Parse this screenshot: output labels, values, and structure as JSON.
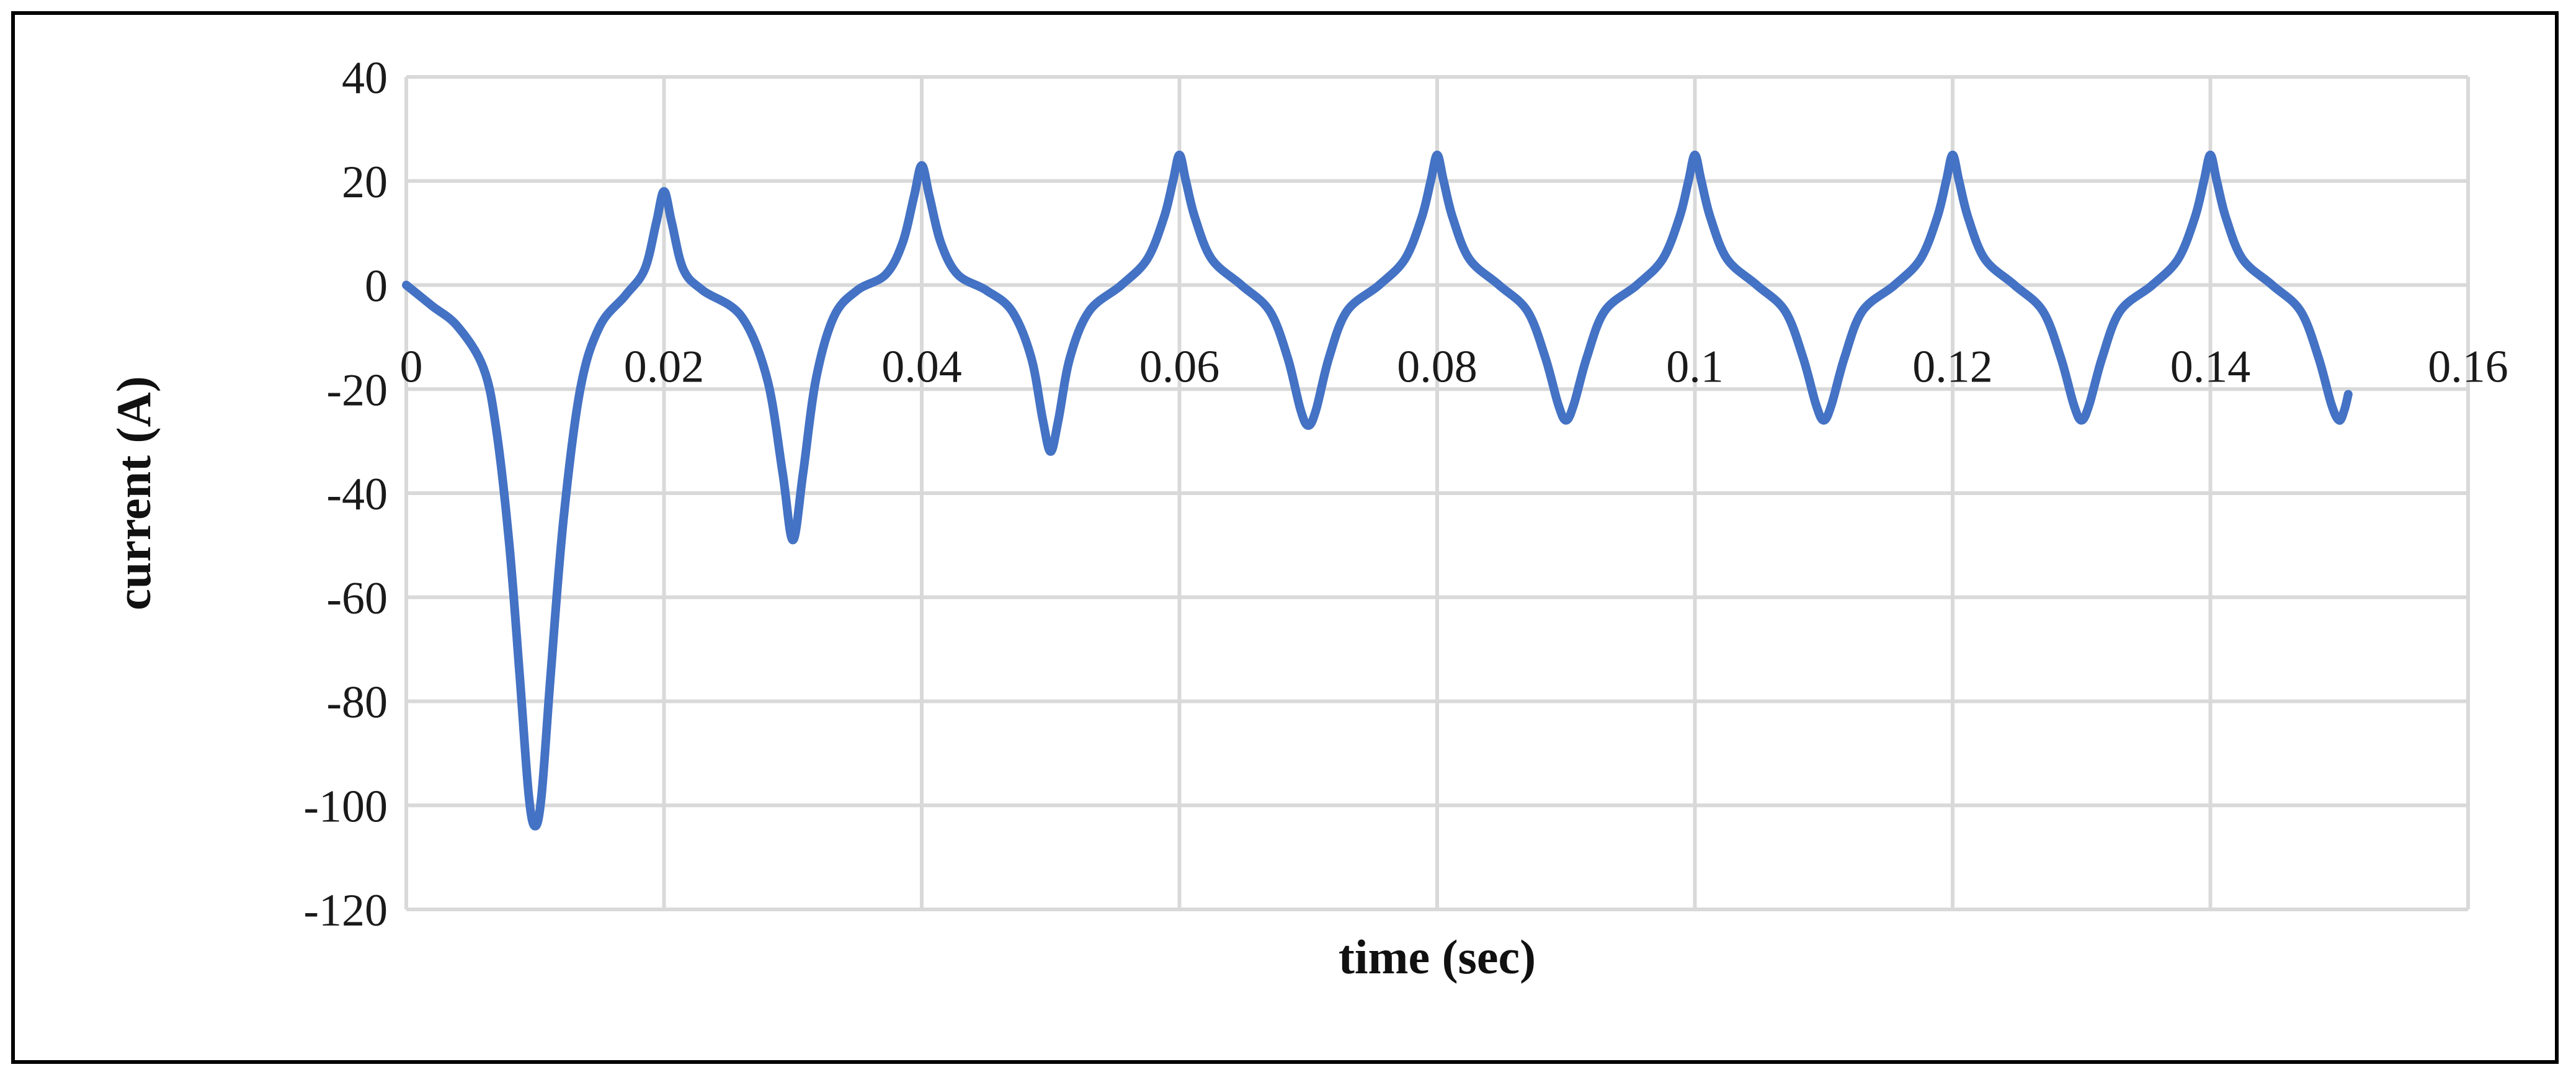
{
  "chart_data": {
    "type": "line",
    "title": "",
    "xlabel": "time (sec)",
    "ylabel": "current (A)",
    "xlim": [
      0,
      0.16
    ],
    "ylim": [
      -120,
      40
    ],
    "x_ticks": [
      0,
      0.02,
      0.04,
      0.06,
      0.08,
      0.1,
      0.12,
      0.14,
      0.16
    ],
    "x_tick_labels": [
      "0",
      "0.02",
      "0.04",
      "0.06",
      "0.08",
      "0.1",
      "0.12",
      "0.14",
      "0.16"
    ],
    "y_ticks": [
      40,
      20,
      0,
      -20,
      -40,
      -60,
      -80,
      -100,
      -120
    ],
    "y_tick_labels": [
      "40",
      "20",
      "0",
      "-20",
      "-40",
      "-60",
      "-80",
      "-100",
      "-120"
    ],
    "grid": true,
    "legend": "none",
    "series": [
      {
        "color": "#4472c4",
        "points": [
          [
            0,
            0
          ],
          [
            0.002,
            -4
          ],
          [
            0.004,
            -8
          ],
          [
            0.006,
            -16
          ],
          [
            0.007,
            -28
          ],
          [
            0.008,
            -50
          ],
          [
            0.0088,
            -75
          ],
          [
            0.0095,
            -98
          ],
          [
            0.01,
            -104
          ],
          [
            0.0105,
            -98
          ],
          [
            0.0112,
            -75
          ],
          [
            0.0122,
            -45
          ],
          [
            0.0135,
            -20
          ],
          [
            0.015,
            -8
          ],
          [
            0.017,
            -2
          ],
          [
            0.0185,
            3
          ],
          [
            0.0194,
            12
          ],
          [
            0.02,
            18
          ],
          [
            0.0206,
            12
          ],
          [
            0.0215,
            3
          ],
          [
            0.023,
            -1
          ],
          [
            0.026,
            -6
          ],
          [
            0.028,
            -18
          ],
          [
            0.0292,
            -36
          ],
          [
            0.03,
            -49
          ],
          [
            0.0308,
            -36
          ],
          [
            0.0318,
            -18
          ],
          [
            0.0332,
            -6
          ],
          [
            0.035,
            -1
          ],
          [
            0.0372,
            2
          ],
          [
            0.0385,
            8
          ],
          [
            0.0394,
            17
          ],
          [
            0.04,
            23
          ],
          [
            0.0406,
            17
          ],
          [
            0.0415,
            8
          ],
          [
            0.0428,
            2
          ],
          [
            0.045,
            -1
          ],
          [
            0.047,
            -5
          ],
          [
            0.0485,
            -14
          ],
          [
            0.0494,
            -26
          ],
          [
            0.05,
            -32
          ],
          [
            0.0506,
            -26
          ],
          [
            0.0515,
            -14
          ],
          [
            0.053,
            -5
          ],
          [
            0.0555,
            0
          ],
          [
            0.0575,
            5
          ],
          [
            0.0588,
            13
          ],
          [
            0.0595,
            20
          ],
          [
            0.06,
            25
          ],
          [
            0.0605,
            20
          ],
          [
            0.0612,
            13
          ],
          [
            0.0625,
            5
          ],
          [
            0.0648,
            0
          ],
          [
            0.067,
            -5
          ],
          [
            0.0684,
            -14
          ],
          [
            0.0694,
            -24
          ],
          [
            0.07,
            -27
          ],
          [
            0.0706,
            -24
          ],
          [
            0.0716,
            -14
          ],
          [
            0.073,
            -5
          ],
          [
            0.0755,
            0
          ],
          [
            0.0775,
            5
          ],
          [
            0.0788,
            13
          ],
          [
            0.0795,
            20
          ],
          [
            0.08,
            25
          ],
          [
            0.0805,
            20
          ],
          [
            0.0812,
            13
          ],
          [
            0.0825,
            5
          ],
          [
            0.0848,
            0
          ],
          [
            0.087,
            -5
          ],
          [
            0.0884,
            -14
          ],
          [
            0.0894,
            -23
          ],
          [
            0.09,
            -26
          ],
          [
            0.0906,
            -23
          ],
          [
            0.0916,
            -14
          ],
          [
            0.093,
            -5
          ],
          [
            0.0955,
            0
          ],
          [
            0.0975,
            5
          ],
          [
            0.0988,
            13
          ],
          [
            0.0995,
            20
          ],
          [
            0.1,
            25
          ],
          [
            0.1005,
            20
          ],
          [
            0.1012,
            13
          ],
          [
            0.1025,
            5
          ],
          [
            0.1048,
            0
          ],
          [
            0.107,
            -5
          ],
          [
            0.1084,
            -14
          ],
          [
            0.1094,
            -23
          ],
          [
            0.11,
            -26
          ],
          [
            0.1106,
            -23
          ],
          [
            0.1116,
            -14
          ],
          [
            0.113,
            -5
          ],
          [
            0.1155,
            0
          ],
          [
            0.1175,
            5
          ],
          [
            0.1188,
            13
          ],
          [
            0.1195,
            20
          ],
          [
            0.12,
            25
          ],
          [
            0.1205,
            20
          ],
          [
            0.1212,
            13
          ],
          [
            0.1225,
            5
          ],
          [
            0.1248,
            0
          ],
          [
            0.127,
            -5
          ],
          [
            0.1284,
            -14
          ],
          [
            0.1294,
            -23
          ],
          [
            0.13,
            -26
          ],
          [
            0.1306,
            -23
          ],
          [
            0.1316,
            -14
          ],
          [
            0.133,
            -5
          ],
          [
            0.1355,
            0
          ],
          [
            0.1375,
            5
          ],
          [
            0.1388,
            13
          ],
          [
            0.1395,
            20
          ],
          [
            0.14,
            25
          ],
          [
            0.1405,
            20
          ],
          [
            0.1412,
            13
          ],
          [
            0.1425,
            5
          ],
          [
            0.1448,
            0
          ],
          [
            0.147,
            -5
          ],
          [
            0.1484,
            -14
          ],
          [
            0.1494,
            -23
          ],
          [
            0.15,
            -26
          ],
          [
            0.1504,
            -24
          ],
          [
            0.1507,
            -21
          ]
        ]
      }
    ]
  }
}
